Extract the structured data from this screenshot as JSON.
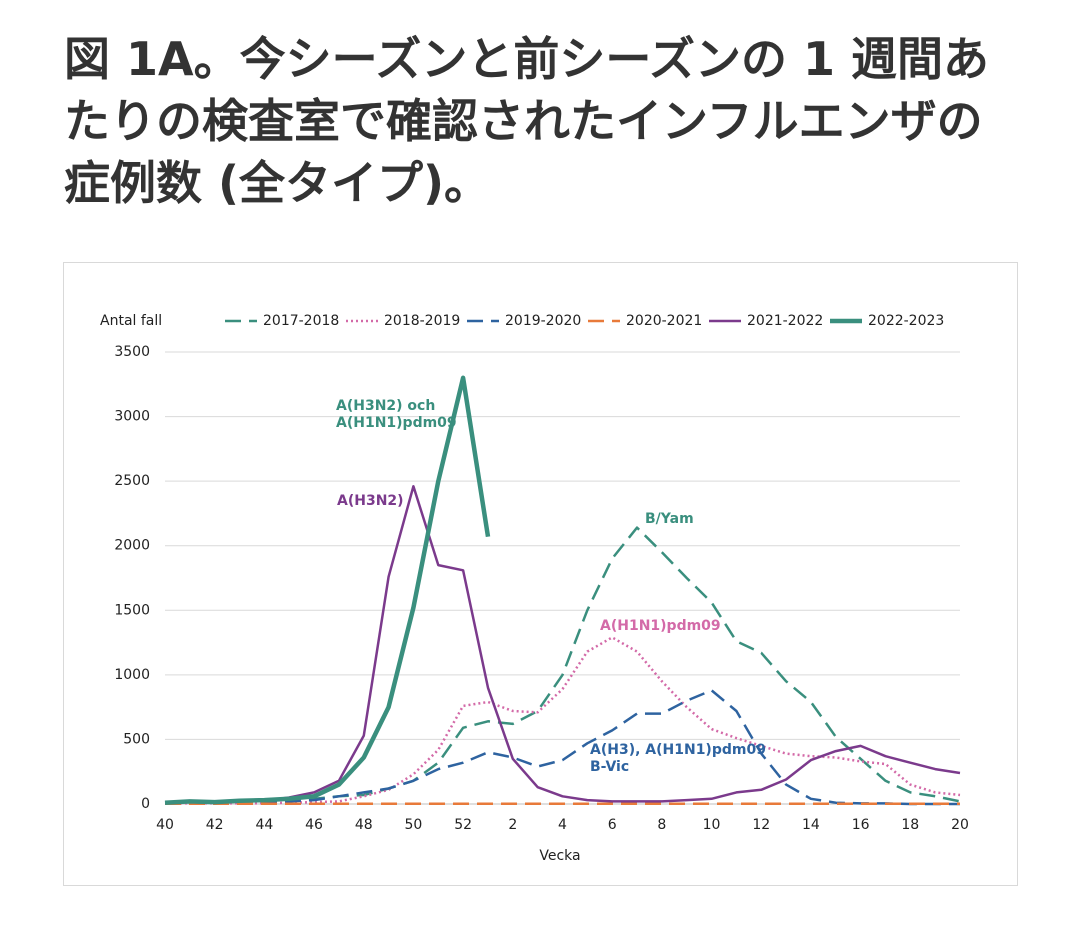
{
  "chart_data": {
    "type": "line",
    "title": "図 1A。今シーズンと前シーズンの 1 週間あたりの検査室で確認されたインフルエンザの症例数 (全タイプ)。",
    "y_label": "Antal fall",
    "x_label": "Vecka",
    "categories": [
      40,
      null,
      42,
      null,
      44,
      null,
      46,
      null,
      48,
      null,
      50,
      null,
      52,
      null,
      2,
      null,
      4,
      null,
      6,
      null,
      8,
      null,
      10,
      null,
      12,
      null,
      14,
      null,
      16,
      null,
      18,
      null,
      20
    ],
    "ylim": [
      0,
      3500
    ],
    "yticks": [
      0,
      500,
      1000,
      1500,
      2000,
      2500,
      3000,
      3500
    ],
    "grid": true,
    "series": [
      {
        "name": "2017-2018",
        "color": "#3a8f7e",
        "linestyle": "dashed",
        "values": [
          10,
          10,
          10,
          15,
          20,
          30,
          40,
          60,
          70,
          120,
          180,
          320,
          590,
          640,
          620,
          720,
          1000,
          1500,
          1900,
          2140,
          1950,
          1750,
          1560,
          1260,
          1170,
          950,
          790,
          520,
          350,
          180,
          90,
          60,
          20
        ]
      },
      {
        "name": "2018-2019",
        "color": "#d36aa8",
        "linestyle": "dotted",
        "values": [
          5,
          5,
          5,
          5,
          5,
          10,
          15,
          20,
          60,
          110,
          230,
          420,
          760,
          790,
          720,
          710,
          890,
          1180,
          1290,
          1180,
          950,
          750,
          580,
          510,
          450,
          390,
          370,
          360,
          330,
          310,
          150,
          90,
          70
        ]
      },
      {
        "name": "2019-2020",
        "color": "#2e63a0",
        "linestyle": "dashed",
        "values": [
          5,
          5,
          5,
          10,
          15,
          20,
          30,
          60,
          90,
          120,
          180,
          270,
          320,
          400,
          360,
          290,
          340,
          470,
          570,
          700,
          700,
          800,
          880,
          720,
          390,
          150,
          40,
          10,
          5,
          5,
          0,
          0,
          0
        ]
      },
      {
        "name": "2020-2021",
        "color": "#e87a3a",
        "linestyle": "dashed",
        "values": [
          2,
          2,
          2,
          2,
          2,
          2,
          2,
          2,
          2,
          2,
          2,
          2,
          2,
          2,
          2,
          2,
          2,
          2,
          2,
          2,
          2,
          2,
          2,
          2,
          2,
          2,
          2,
          2,
          2,
          2,
          2,
          2,
          2
        ]
      },
      {
        "name": "2021-2022",
        "color": "#7b3a8c",
        "linestyle": "solid",
        "values": [
          10,
          15,
          10,
          20,
          25,
          50,
          90,
          180,
          530,
          1760,
          2460,
          1850,
          1810,
          900,
          350,
          130,
          60,
          30,
          20,
          20,
          20,
          30,
          40,
          90,
          110,
          190,
          340,
          410,
          450,
          370,
          320,
          270,
          240
        ]
      },
      {
        "name": "2022-2023",
        "color": "#3a8f7e",
        "linestyle": "thick",
        "values": [
          10,
          20,
          15,
          25,
          30,
          40,
          60,
          150,
          360,
          750,
          1520,
          2500,
          3300,
          2070,
          null,
          null,
          null,
          null,
          null,
          null,
          null,
          null,
          null,
          null,
          null,
          null,
          null,
          null,
          null,
          null,
          null,
          null,
          null
        ]
      }
    ],
    "annotations": [
      {
        "lines": [
          "A(H3N2) och",
          "A(H1N1)pdm09"
        ],
        "color": "#3a8f7e"
      },
      {
        "lines": [
          "A(H3N2)"
        ],
        "color": "#7b3a8c"
      },
      {
        "lines": [
          "B/Yam"
        ],
        "color": "#3a8f7e"
      },
      {
        "lines": [
          "A(H1N1)pdm09"
        ],
        "color": "#d36aa8"
      },
      {
        "lines": [
          "A(H3), A(H1N1)pdm09",
          "B-Vic"
        ],
        "color": "#2e63a0"
      }
    ]
  }
}
